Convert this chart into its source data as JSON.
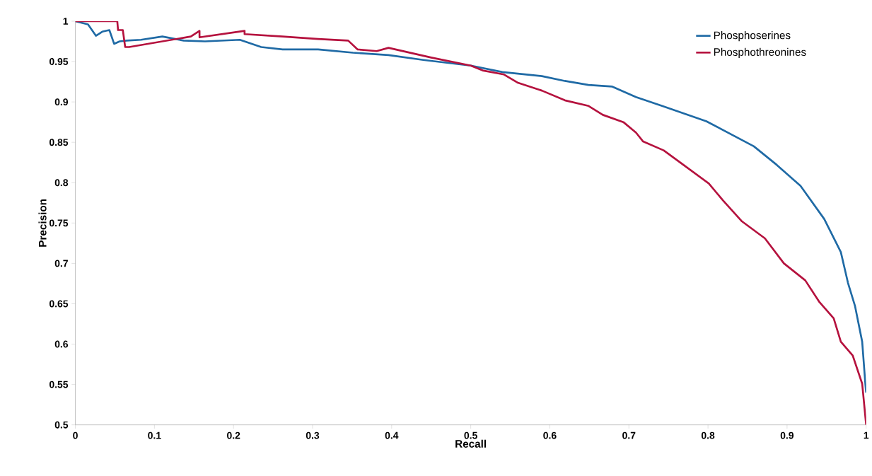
{
  "chart_data": {
    "type": "line",
    "xlabel": "Recall",
    "ylabel": "Precision",
    "xlim": [
      0,
      1
    ],
    "ylim": [
      0.5,
      1
    ],
    "xticks": [
      0,
      0.1,
      0.2,
      0.3,
      0.4,
      0.5,
      0.6,
      0.7,
      0.8,
      0.9,
      1
    ],
    "yticks": [
      0.5,
      0.55,
      0.6,
      0.65,
      0.7,
      0.75,
      0.8,
      0.85,
      0.9,
      0.95,
      1
    ],
    "legend": "top right",
    "line_style": "solid",
    "series": [
      {
        "name": "Phosphoserines",
        "color": "#1f6aa5",
        "x": [
          0,
          0.016,
          0.026,
          0.034,
          0.043,
          0.049,
          0.056,
          0.065,
          0.083,
          0.11,
          0.137,
          0.164,
          0.208,
          0.235,
          0.262,
          0.307,
          0.351,
          0.396,
          0.44,
          0.5,
          0.54,
          0.59,
          0.619,
          0.649,
          0.679,
          0.709,
          0.742,
          0.798,
          0.858,
          0.887,
          0.917,
          0.947,
          0.968,
          0.977,
          0.986,
          0.995,
          0.999,
          1
        ],
        "values": [
          1,
          0.996,
          0.982,
          0.987,
          0.989,
          0.972,
          0.975,
          0.976,
          0.977,
          0.981,
          0.976,
          0.975,
          0.977,
          0.968,
          0.965,
          0.965,
          0.961,
          0.958,
          0.952,
          0.945,
          0.937,
          0.932,
          0.926,
          0.921,
          0.919,
          0.906,
          0.895,
          0.876,
          0.845,
          0.822,
          0.796,
          0.755,
          0.714,
          0.676,
          0.647,
          0.603,
          0.551,
          0.54
        ]
      },
      {
        "name": "Phosphothreonines",
        "color": "#b5123e",
        "x": [
          0,
          0.053,
          0.054,
          0.06,
          0.063,
          0.068,
          0.146,
          0.157,
          0.157,
          0.214,
          0.214,
          0.262,
          0.307,
          0.345,
          0.357,
          0.381,
          0.396,
          0.45,
          0.5,
          0.515,
          0.542,
          0.559,
          0.59,
          0.619,
          0.649,
          0.667,
          0.693,
          0.709,
          0.718,
          0.744,
          0.769,
          0.801,
          0.819,
          0.843,
          0.872,
          0.896,
          0.923,
          0.941,
          0.959,
          0.968,
          0.983,
          0.995,
          1
        ],
        "values": [
          1,
          1,
          0.989,
          0.989,
          0.968,
          0.968,
          0.981,
          0.988,
          0.98,
          0.988,
          0.984,
          0.981,
          0.978,
          0.976,
          0.965,
          0.963,
          0.967,
          0.955,
          0.945,
          0.939,
          0.934,
          0.924,
          0.914,
          0.902,
          0.895,
          0.884,
          0.875,
          0.862,
          0.851,
          0.84,
          0.822,
          0.799,
          0.778,
          0.752,
          0.731,
          0.7,
          0.679,
          0.652,
          0.632,
          0.603,
          0.586,
          0.551,
          0.5
        ]
      }
    ]
  }
}
